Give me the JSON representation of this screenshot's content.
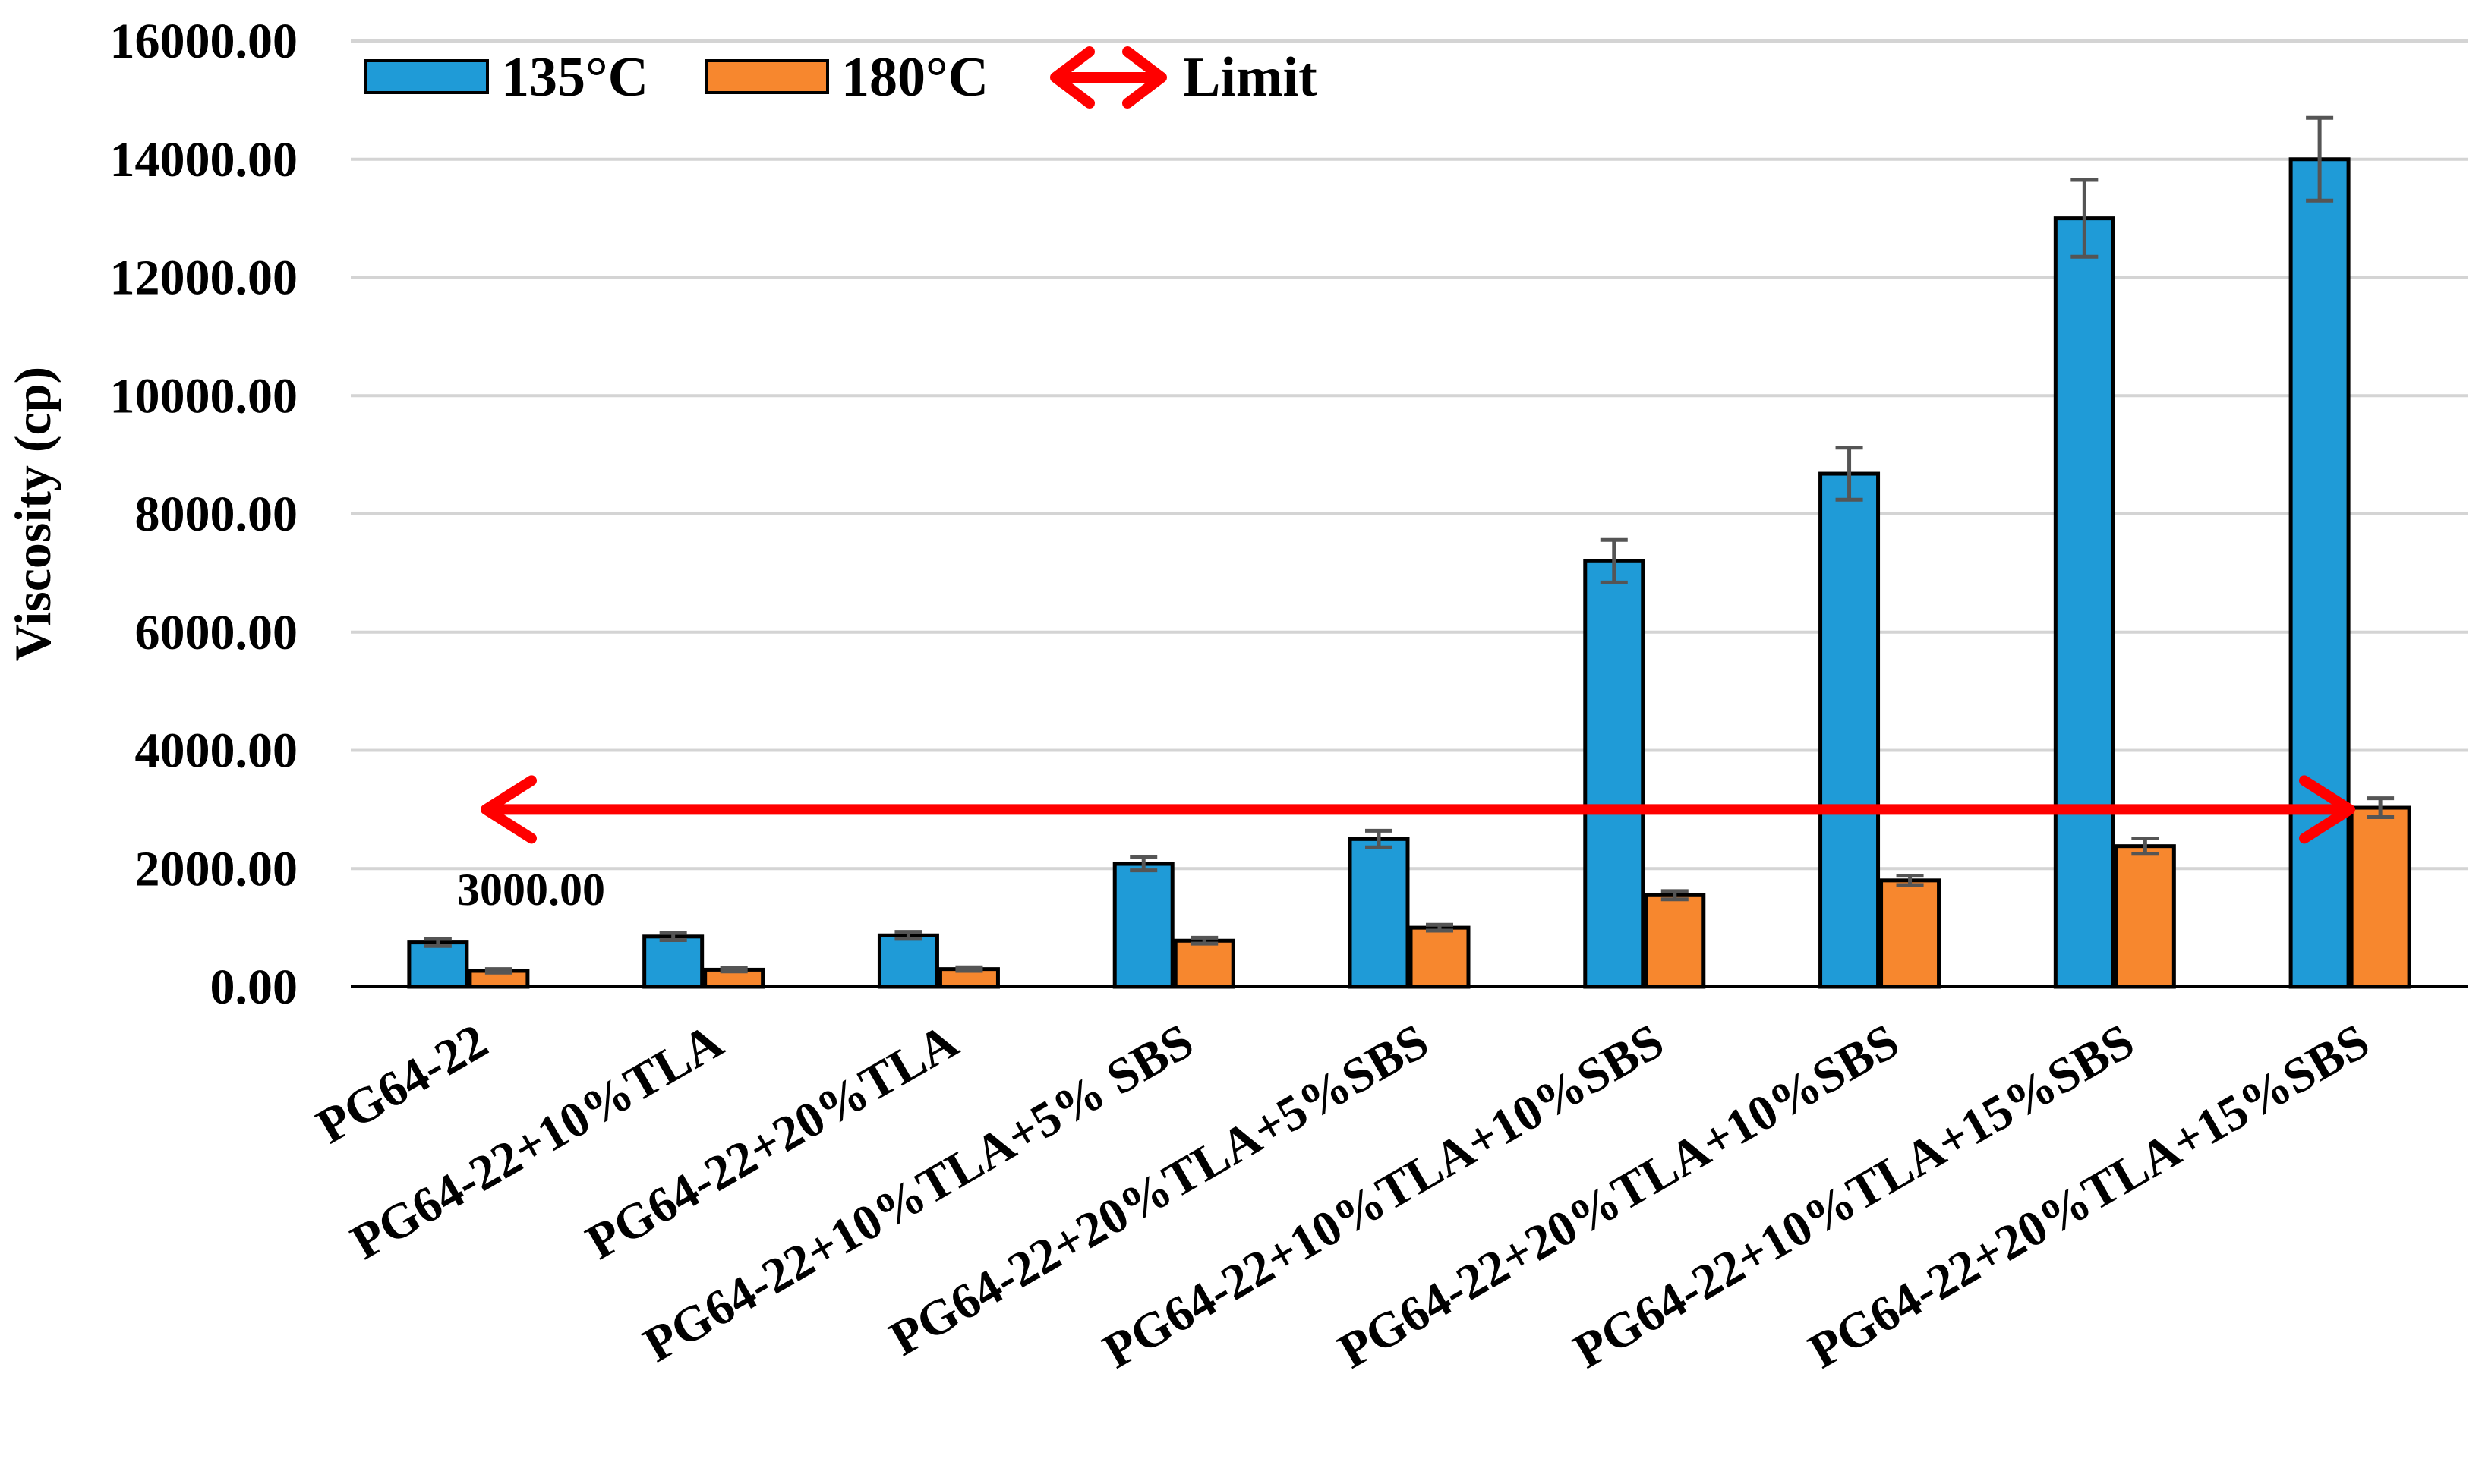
{
  "chart_data": {
    "type": "bar",
    "ylabel": "Viscosity (cp)",
    "xlabel": "",
    "ylim": [
      0,
      16000
    ],
    "yticks": [
      "0.00",
      "2000.00",
      "4000.00",
      "6000.00",
      "8000.00",
      "10000.00",
      "12000.00",
      "14000.00",
      "16000.00"
    ],
    "grid": true,
    "legend_position": "top-left",
    "categories": [
      "PG64-22",
      "PG64-22+10%TLA",
      "PG64-22+20%TLA",
      "PG64-22+10%TLA+5% SBS",
      "PG64-22+20%TLA+5%SBS",
      "PG64-22+10%TLA+10%SBS",
      "PG64-22+20%TLA+10%SBS",
      "PG64-22+10%TLA+15%SBS",
      "PG64-22+20%TLA+15%SBS"
    ],
    "series": [
      {
        "name": "135°C",
        "color": "#1F9BD7",
        "values": [
          750,
          850,
          870,
          2080,
          2500,
          7200,
          8680,
          13000,
          14000
        ],
        "errors": [
          60,
          60,
          60,
          110,
          140,
          360,
          440,
          650,
          700
        ]
      },
      {
        "name": "180°C",
        "color": "#F7872E",
        "values": [
          270,
          290,
          300,
          780,
          1000,
          1550,
          1800,
          2380,
          3030
        ],
        "errors": [
          30,
          30,
          30,
          50,
          50,
          70,
          80,
          130,
          160
        ]
      }
    ],
    "limit": {
      "name": "Limit",
      "value": 3000,
      "label": "3000.00",
      "color": "#FF0000"
    }
  }
}
